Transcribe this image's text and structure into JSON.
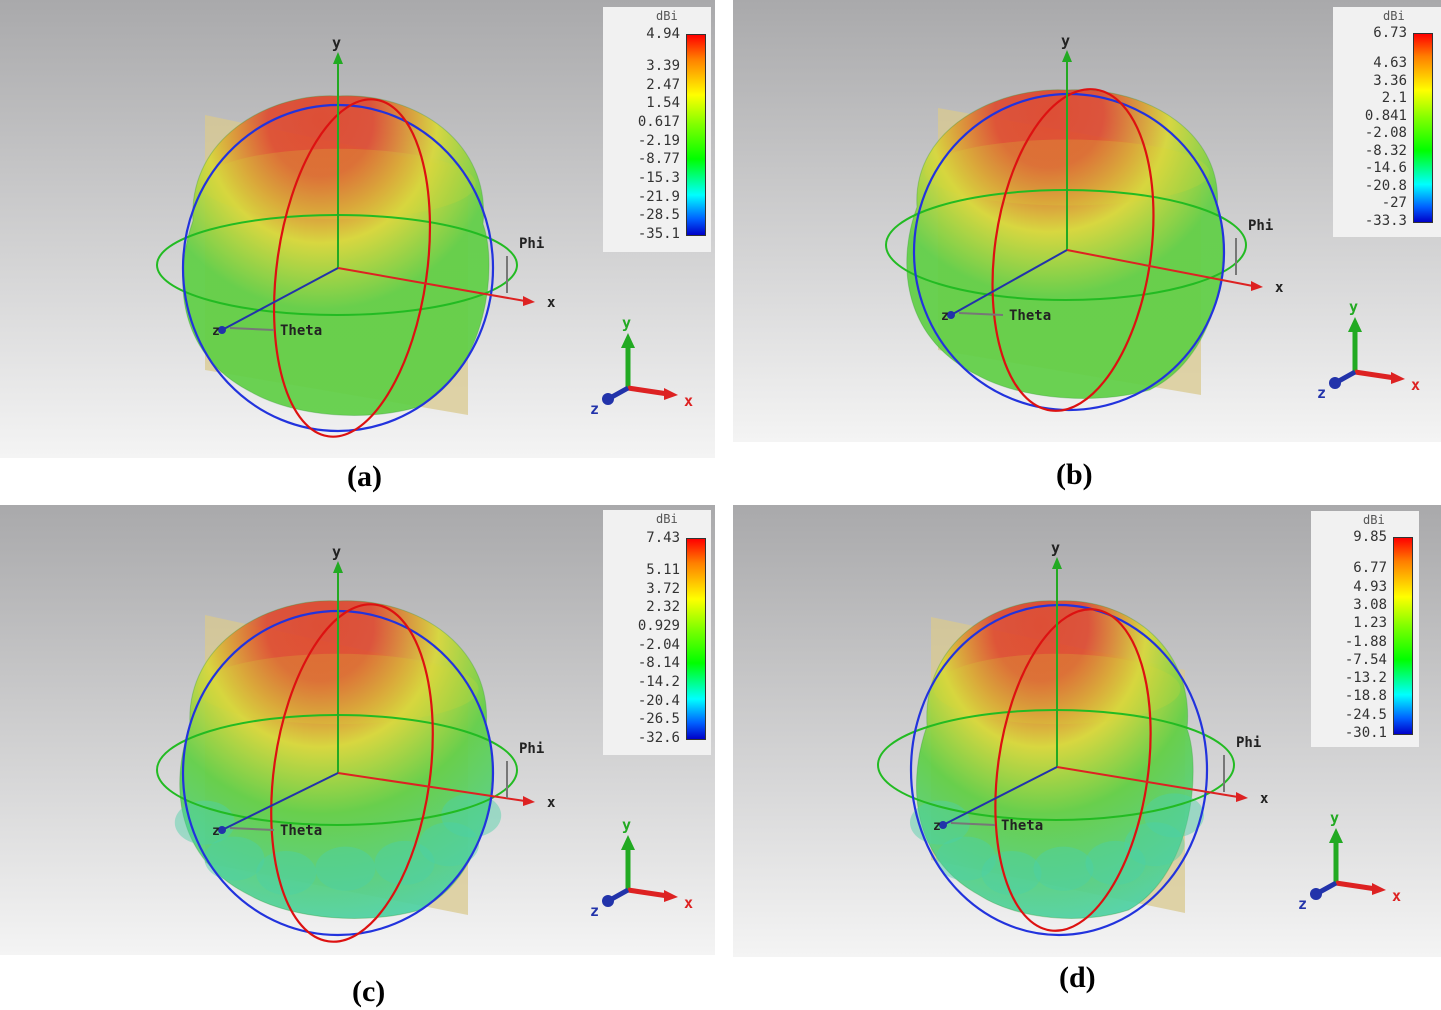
{
  "panels": [
    {
      "caption": "(a)",
      "colorbar": {
        "unit": "dBi",
        "ticks": [
          "4.94",
          "3.39",
          "2.47",
          "1.54",
          "0.617",
          "-2.19",
          "-8.77",
          "-15.3",
          "-21.9",
          "-28.5",
          "-35.1"
        ]
      },
      "labels": {
        "y": "y",
        "x": "x",
        "z": "z",
        "phi": "Phi",
        "theta": "Theta"
      },
      "triad": {
        "x": "x",
        "y": "y",
        "z": "z"
      }
    },
    {
      "caption": "(b)",
      "colorbar": {
        "unit": "dBi",
        "ticks": [
          "6.73",
          "4.63",
          "3.36",
          "2.1",
          "0.841",
          "-2.08",
          "-8.32",
          "-14.6",
          "-20.8",
          "-27",
          "-33.3"
        ]
      },
      "labels": {
        "y": "y",
        "x": "x",
        "z": "z",
        "phi": "Phi",
        "theta": "Theta"
      },
      "triad": {
        "x": "x",
        "y": "y",
        "z": "z"
      }
    },
    {
      "caption": "(c)",
      "colorbar": {
        "unit": "dBi",
        "ticks": [
          "7.43",
          "5.11",
          "3.72",
          "2.32",
          "0.929",
          "-2.04",
          "-8.14",
          "-14.2",
          "-20.4",
          "-26.5",
          "-32.6"
        ]
      },
      "labels": {
        "y": "y",
        "x": "x",
        "z": "z",
        "phi": "Phi",
        "theta": "Theta"
      },
      "triad": {
        "x": "x",
        "y": "y",
        "z": "z"
      }
    },
    {
      "caption": "(d)",
      "colorbar": {
        "unit": "dBi",
        "ticks": [
          "9.85",
          "6.77",
          "4.93",
          "3.08",
          "1.23",
          "-1.88",
          "-7.54",
          "-13.2",
          "-18.8",
          "-24.5",
          "-30.1"
        ]
      },
      "labels": {
        "y": "y",
        "x": "x",
        "z": "z",
        "phi": "Phi",
        "theta": "Theta"
      },
      "triad": {
        "x": "x",
        "y": "y",
        "z": "z"
      }
    }
  ],
  "colors": {
    "background_top": "#a9a9ab",
    "background_bottom": "#f4f4f4",
    "pattern_green": "#5fcf45",
    "pattern_red": "#e0452a",
    "pattern_yellow": "#d8d838",
    "pattern_cyan": "#4cd1a6",
    "phi_circle": "#22bb22",
    "theta_circle": "#dd1111",
    "elevation_circle": "#2233dd",
    "plane": "#d9c98f",
    "axis_x": "#dd2222",
    "axis_y": "#22aa22",
    "axis_z": "#2233aa"
  }
}
